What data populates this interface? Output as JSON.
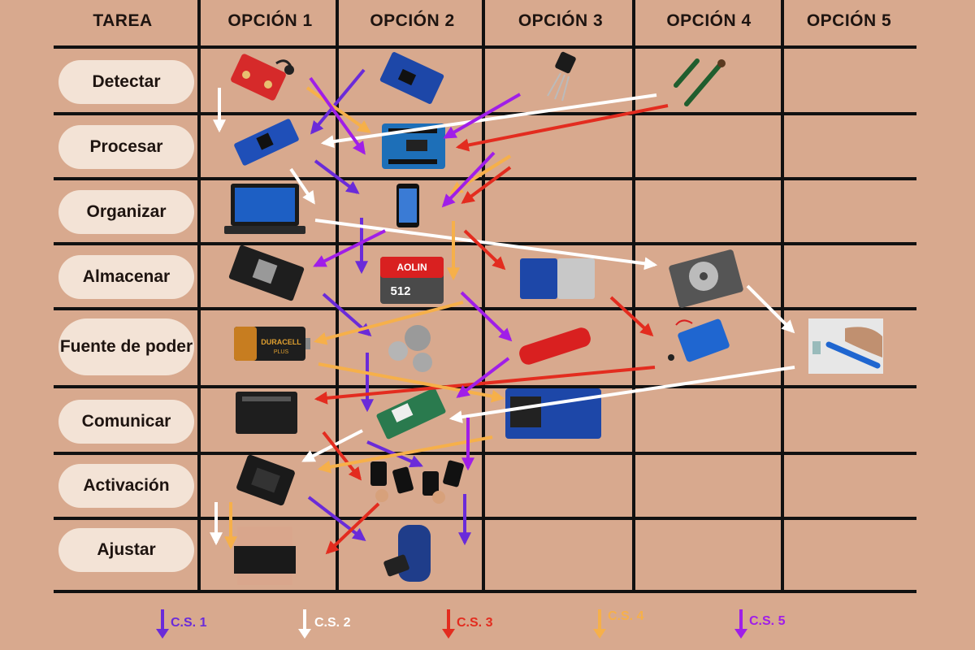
{
  "headers": [
    "TAREA",
    "OPCIÓN 1",
    "OPCIÓN 2",
    "OPCIÓN 3",
    "OPCIÓN 4",
    "OPCIÓN 5"
  ],
  "tasks": [
    "Detectar",
    "Procesar",
    "Organizar",
    "Almacenar",
    "Fuente de poder",
    "Comunicar",
    "Activación",
    "Ajustar"
  ],
  "component_text": {
    "sd_brand": "AOLIN",
    "sd_capacity": "512",
    "battery_brand": "DURACELL",
    "battery_sub": "PLUS"
  },
  "legend": [
    {
      "label": "C.S. 1",
      "color": "#6a2bd9"
    },
    {
      "label": "C.S. 2",
      "color": "#ffffff"
    },
    {
      "label": "C.S. 3",
      "color": "#e32c1f"
    },
    {
      "label": "C.S. 4",
      "color": "#f6b04a"
    },
    {
      "label": "C.S. 5",
      "color": "#a01ee8"
    }
  ],
  "colors": {
    "background": "#d8a98e",
    "grid": "#111111",
    "task_pill": "#f3e3d6",
    "cs1": "#6a2bd9",
    "cs2": "#ffffff",
    "cs3": "#e32c1f",
    "cs4": "#f6b04a",
    "cs5": "#a01ee8"
  }
}
